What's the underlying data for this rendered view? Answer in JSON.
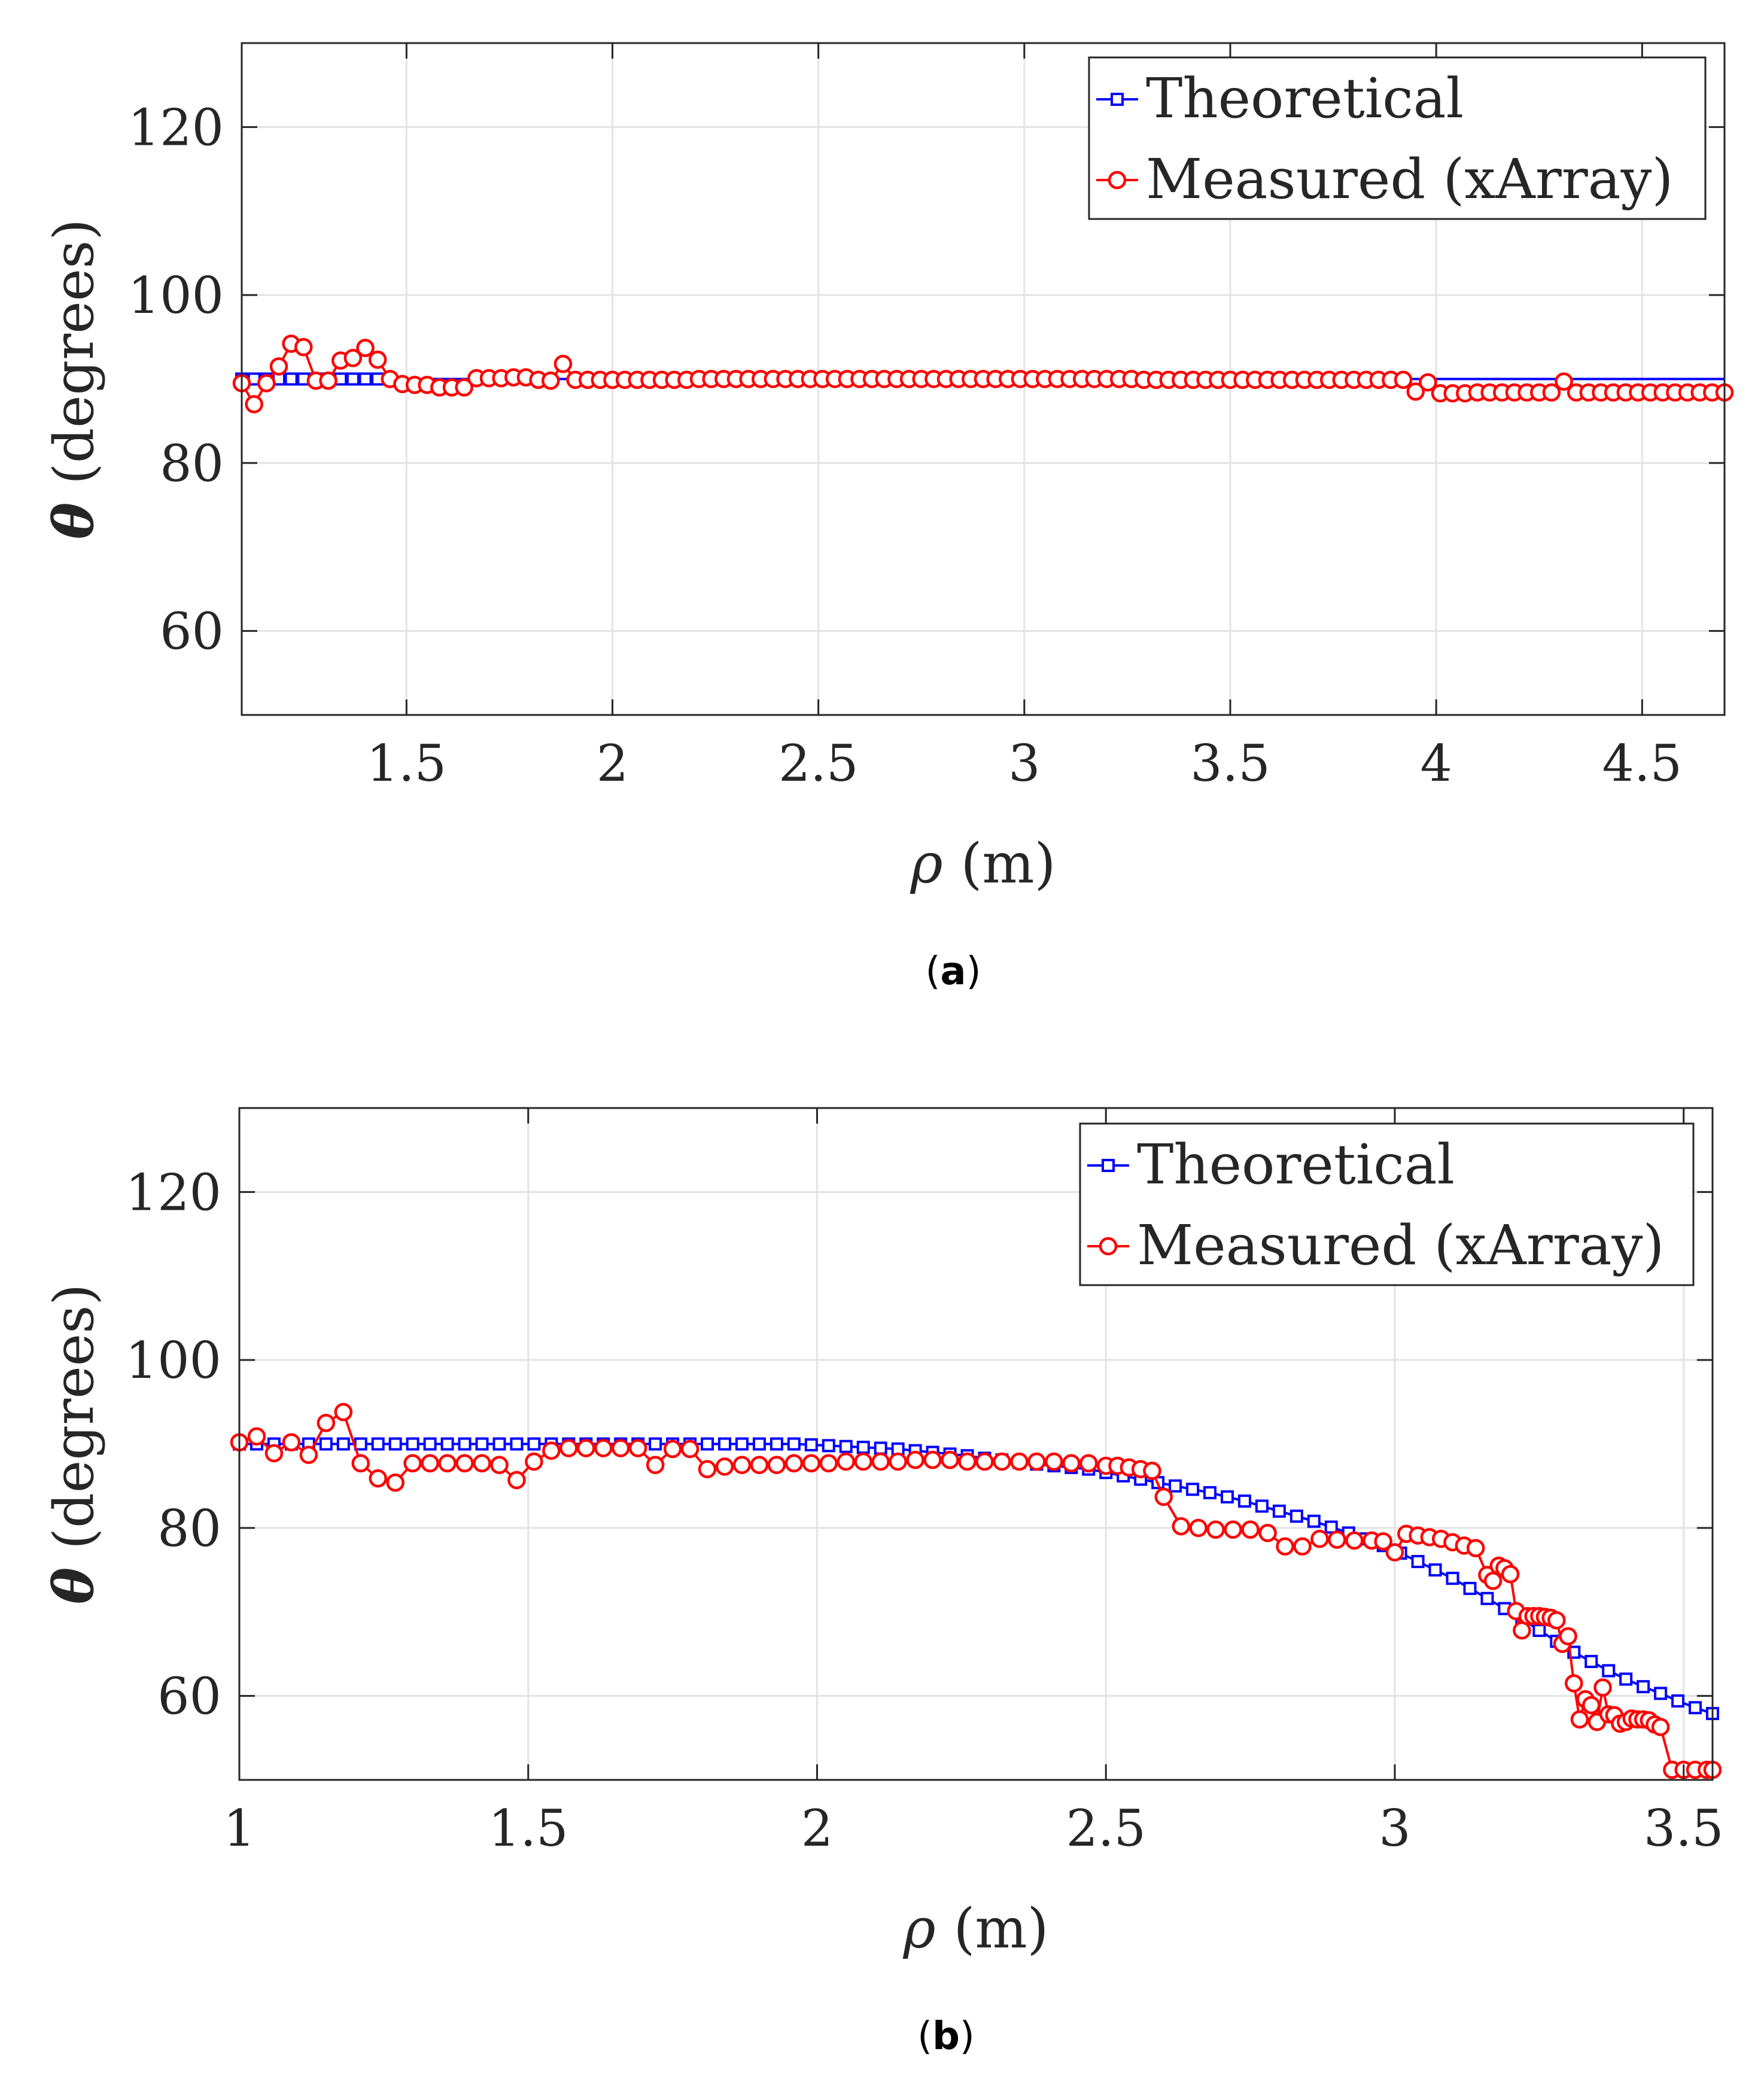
{
  "chart_data": [
    {
      "type": "line",
      "caption": "(a)",
      "caption_letter": "a",
      "xlabel_symbol": "ρ",
      "xlabel_unit": "(m)",
      "ylabel_symbol": "θ",
      "ylabel_unit": "(degrees)",
      "xlim": [
        1.1,
        4.7
      ],
      "ylim": [
        50,
        130
      ],
      "xticks": [
        1.5,
        2,
        2.5,
        3,
        3.5,
        4,
        4.5
      ],
      "xtick_labels": [
        "1.5",
        "2",
        "2.5",
        "3",
        "3.5",
        "4",
        "4.5"
      ],
      "yticks": [
        60,
        80,
        100,
        120
      ],
      "ytick_labels": [
        "60",
        "80",
        "100",
        "120"
      ],
      "grid": true,
      "legend_position": "top-right",
      "series": [
        {
          "name": "Theoretical",
          "color": "#0000ff",
          "marker": "square",
          "x": [
            1.1,
            1.13,
            1.16,
            1.19,
            1.22,
            1.25,
            1.28,
            1.31,
            1.34,
            1.37,
            1.4,
            1.43
          ],
          "y": [
            90,
            90,
            90,
            90,
            90,
            90,
            90,
            90,
            90,
            90,
            90,
            90
          ],
          "line_extends_to_x": 4.7
        },
        {
          "name": "Measured (xArray)",
          "color": "#ff0000",
          "marker": "circle",
          "x": [
            1.1,
            1.13,
            1.16,
            1.19,
            1.22,
            1.25,
            1.28,
            1.31,
            1.34,
            1.37,
            1.4,
            1.43,
            1.46,
            1.49,
            1.52,
            1.55,
            1.58,
            1.61,
            1.64,
            1.67,
            1.7,
            1.73,
            1.76,
            1.79,
            1.82,
            1.85,
            1.88,
            1.91,
            1.94,
            1.97,
            2.0,
            2.03,
            2.06,
            2.09,
            2.12,
            2.15,
            2.18,
            2.21,
            2.24,
            2.27,
            2.3,
            2.33,
            2.36,
            2.39,
            2.42,
            2.45,
            2.48,
            2.51,
            2.54,
            2.57,
            2.6,
            2.63,
            2.66,
            2.69,
            2.72,
            2.75,
            2.78,
            2.81,
            2.84,
            2.87,
            2.9,
            2.93,
            2.96,
            2.99,
            3.02,
            3.05,
            3.08,
            3.11,
            3.14,
            3.17,
            3.2,
            3.23,
            3.26,
            3.29,
            3.32,
            3.35,
            3.38,
            3.41,
            3.44,
            3.47,
            3.5,
            3.53,
            3.56,
            3.59,
            3.62,
            3.65,
            3.68,
            3.71,
            3.74,
            3.77,
            3.8,
            3.83,
            3.86,
            3.89,
            3.92,
            3.95,
            3.98,
            4.01,
            4.04,
            4.07,
            4.1,
            4.13,
            4.16,
            4.19,
            4.22,
            4.25,
            4.28,
            4.31,
            4.34,
            4.37,
            4.4,
            4.43,
            4.46,
            4.49,
            4.52,
            4.55,
            4.58,
            4.61,
            4.64,
            4.67,
            4.7
          ],
          "y": [
            89.5,
            87,
            89.5,
            91.5,
            94.2,
            93.8,
            89.8,
            89.8,
            92.2,
            92.5,
            93.7,
            92.3,
            90,
            89.4,
            89.3,
            89.3,
            89,
            89,
            89,
            90.1,
            90.1,
            90.1,
            90.2,
            90.2,
            89.9,
            89.8,
            91.8,
            89.9,
            89.9,
            89.9,
            89.9,
            89.9,
            89.9,
            89.9,
            89.9,
            89.9,
            89.9,
            90,
            90,
            90,
            90,
            90,
            90,
            90,
            90,
            90,
            90,
            90,
            90,
            90,
            90,
            90,
            90,
            90,
            90,
            90,
            90,
            90,
            90,
            90,
            90,
            90,
            90,
            90,
            90,
            90,
            90,
            90,
            90,
            90,
            90,
            90,
            90,
            89.9,
            89.9,
            89.9,
            89.9,
            89.9,
            89.9,
            89.9,
            89.9,
            89.9,
            89.9,
            89.9,
            89.9,
            89.9,
            89.9,
            89.9,
            89.9,
            89.9,
            89.9,
            89.9,
            89.9,
            89.9,
            89.9,
            88.5,
            89.6,
            88.3,
            88.3,
            88.3,
            88.4,
            88.4,
            88.4,
            88.4,
            88.4,
            88.4,
            88.4,
            89.7,
            88.4,
            88.4,
            88.4,
            88.4,
            88.4,
            88.4,
            88.4,
            88.4,
            88.4,
            88.4,
            88.4,
            88.4,
            88.4
          ]
        }
      ]
    },
    {
      "type": "line",
      "caption": "(b)",
      "caption_letter": "b",
      "xlabel_symbol": "ρ",
      "xlabel_unit": "(m)",
      "ylabel_symbol": "θ",
      "ylabel_unit": "(degrees)",
      "xlim": [
        1.0,
        3.55
      ],
      "ylim": [
        50,
        130
      ],
      "xticks": [
        1,
        1.5,
        2,
        2.5,
        3,
        3.5
      ],
      "xtick_labels": [
        "1",
        "1.5",
        "2",
        "2.5",
        "3",
        "3.5"
      ],
      "yticks": [
        60,
        80,
        100,
        120
      ],
      "ytick_labels": [
        "60",
        "80",
        "100",
        "120"
      ],
      "grid": true,
      "legend_position": "top-right",
      "series": [
        {
          "name": "Theoretical",
          "color": "#0000ff",
          "marker": "square",
          "x": [
            1.0,
            1.03,
            1.06,
            1.09,
            1.12,
            1.15,
            1.18,
            1.21,
            1.24,
            1.27,
            1.3,
            1.33,
            1.36,
            1.39,
            1.42,
            1.45,
            1.48,
            1.51,
            1.54,
            1.57,
            1.6,
            1.63,
            1.66,
            1.69,
            1.72,
            1.75,
            1.78,
            1.81,
            1.84,
            1.87,
            1.9,
            1.93,
            1.96,
            1.99,
            2.02,
            2.05,
            2.08,
            2.11,
            2.14,
            2.17,
            2.2,
            2.23,
            2.26,
            2.29,
            2.32,
            2.35,
            2.38,
            2.41,
            2.44,
            2.47,
            2.5,
            2.53,
            2.56,
            2.59,
            2.62,
            2.65,
            2.68,
            2.71,
            2.74,
            2.77,
            2.8,
            2.83,
            2.86,
            2.89,
            2.92,
            2.95,
            2.98,
            3.01,
            3.04,
            3.07,
            3.1,
            3.13,
            3.16,
            3.19,
            3.22,
            3.25,
            3.28,
            3.31,
            3.34,
            3.37,
            3.4,
            3.43,
            3.46,
            3.49,
            3.52,
            3.55
          ],
          "y": [
            90,
            90,
            90,
            90,
            90,
            90,
            90,
            90,
            90,
            90,
            90,
            90,
            90,
            90,
            90,
            90,
            90,
            90,
            90,
            90,
            90,
            90,
            90,
            90,
            90,
            90,
            90,
            90,
            90,
            90,
            90,
            90,
            90,
            89.9,
            89.8,
            89.7,
            89.6,
            89.5,
            89.4,
            89.2,
            89,
            88.8,
            88.6,
            88.3,
            88.1,
            87.8,
            87.6,
            87.4,
            87.2,
            87,
            86.6,
            86.2,
            85.8,
            85.4,
            85,
            84.6,
            84.2,
            83.7,
            83.2,
            82.6,
            82,
            81.4,
            80.8,
            80.1,
            79.4,
            78.7,
            77.9,
            77,
            76,
            75,
            74,
            72.8,
            71.6,
            70.4,
            69.2,
            67.8,
            66.5,
            65.2,
            64.1,
            63,
            62,
            61.1,
            60.3,
            59.4,
            58.6,
            57.9
          ]
        },
        {
          "name": "Measured (xArray)",
          "color": "#ff0000",
          "marker": "circle",
          "x": [
            1.0,
            1.03,
            1.06,
            1.09,
            1.12,
            1.15,
            1.18,
            1.21,
            1.24,
            1.27,
            1.3,
            1.33,
            1.36,
            1.39,
            1.42,
            1.45,
            1.48,
            1.51,
            1.54,
            1.57,
            1.6,
            1.63,
            1.66,
            1.69,
            1.72,
            1.75,
            1.78,
            1.81,
            1.84,
            1.87,
            1.9,
            1.93,
            1.96,
            1.99,
            2.02,
            2.05,
            2.08,
            2.11,
            2.14,
            2.17,
            2.2,
            2.23,
            2.26,
            2.29,
            2.32,
            2.35,
            2.38,
            2.41,
            2.44,
            2.47,
            2.5,
            2.52,
            2.54,
            2.56,
            2.58,
            2.6,
            2.63,
            2.66,
            2.69,
            2.72,
            2.75,
            2.78,
            2.81,
            2.84,
            2.87,
            2.9,
            2.93,
            2.96,
            2.98,
            3.0,
            3.02,
            3.04,
            3.06,
            3.08,
            3.1,
            3.12,
            3.14,
            3.16,
            3.17,
            3.18,
            3.19,
            3.2,
            3.21,
            3.22,
            3.23,
            3.24,
            3.25,
            3.26,
            3.27,
            3.28,
            3.29,
            3.3,
            3.31,
            3.32,
            3.33,
            3.34,
            3.35,
            3.36,
            3.37,
            3.38,
            3.39,
            3.4,
            3.41,
            3.42,
            3.43,
            3.44,
            3.45,
            3.46,
            3.48,
            3.5,
            3.52,
            3.54,
            3.55
          ],
          "y": [
            90.2,
            90.9,
            88.9,
            90.2,
            88.7,
            92.5,
            93.8,
            87.7,
            85.9,
            85.4,
            87.7,
            87.7,
            87.7,
            87.7,
            87.7,
            87.5,
            85.7,
            87.9,
            89.2,
            89.5,
            89.5,
            89.5,
            89.5,
            89.5,
            87.5,
            89.4,
            89.4,
            87,
            87.3,
            87.5,
            87.5,
            87.5,
            87.7,
            87.7,
            87.7,
            87.9,
            87.9,
            87.9,
            87.9,
            88.1,
            88.1,
            88.1,
            87.9,
            87.9,
            87.9,
            87.9,
            87.9,
            87.9,
            87.7,
            87.7,
            87.4,
            87.4,
            87.2,
            87,
            86.8,
            83.7,
            80.2,
            80,
            79.8,
            79.8,
            79.8,
            79.4,
            77.8,
            77.8,
            78.7,
            78.6,
            78.5,
            78.5,
            78.4,
            77.1,
            79.3,
            79.1,
            78.9,
            78.7,
            78.3,
            77.9,
            77.6,
            74.4,
            73.7,
            75.5,
            75.2,
            74.5,
            70.1,
            67.8,
            69.5,
            69.5,
            69.5,
            69.4,
            69.3,
            69,
            66.2,
            67.1,
            61.5,
            57.2,
            59.6,
            58.9,
            56.9,
            61,
            57.8,
            57.7,
            56.7,
            56.9,
            57.3,
            57.2,
            57.2,
            57.1,
            56.6,
            56.3,
            51.2,
            51.2,
            51.2,
            51.2,
            51.2
          ]
        }
      ]
    }
  ]
}
